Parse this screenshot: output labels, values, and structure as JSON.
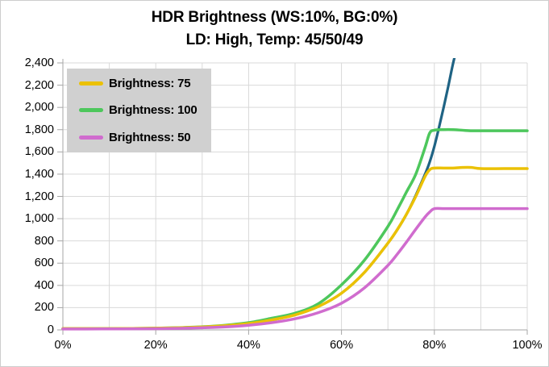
{
  "title": {
    "line1": "HDR Brightness (WS:10%, BG:0%)",
    "line2": "LD: High, Temp: 45/50/49"
  },
  "legend": {
    "position": "top-left",
    "items": [
      {
        "label": "Brightness: 75",
        "color": "#EBC104"
      },
      {
        "label": "Brightness: 100",
        "color": "#4DC75C"
      },
      {
        "label": "Brightness: 50",
        "color": "#D06CCE"
      }
    ]
  },
  "colors": {
    "background": "#FFFFFF",
    "border": "#CDCDCD",
    "gridline": "#D9D9D9",
    "axis": "#A6A6A6",
    "text": "#000000",
    "legend_bg": "#D0D0D0"
  },
  "chart_data": {
    "type": "line",
    "title": "HDR Brightness (WS:10%, BG:0%)",
    "subtitle": "LD: High, Temp: 45/50/49",
    "xlabel": "",
    "ylabel": "",
    "grid": true,
    "legend_position": "top-left",
    "xlim_pct": [
      0,
      100
    ],
    "ylim": [
      0,
      2400
    ],
    "y_tick_step": 200,
    "y_tick_labels": [
      "0",
      "200",
      "400",
      "600",
      "800",
      "1,000",
      "1,200",
      "1,400",
      "1,600",
      "1,800",
      "2,000",
      "2,200",
      "2,400"
    ],
    "x_tick_pct": [
      0,
      20,
      40,
      60,
      80,
      100
    ],
    "x_tick_labels": [
      "0%",
      "20%",
      "40%",
      "60%",
      "80%",
      "100%"
    ],
    "x_grid_step_pct": 10,
    "series": [
      {
        "name": "",
        "in_legend": false,
        "color": "#1F6384",
        "stroke_width": 3.2,
        "x_pct": [
          0,
          5,
          10,
          15,
          20,
          25,
          30,
          35,
          40,
          45,
          50,
          55,
          60,
          65,
          70,
          72,
          74,
          76,
          78,
          79,
          80,
          81,
          82,
          83,
          84,
          85
        ],
        "values": [
          12,
          12,
          12,
          13,
          15,
          19,
          26,
          38,
          57,
          90,
          135,
          210,
          330,
          520,
          780,
          900,
          1040,
          1210,
          1400,
          1510,
          1650,
          1820,
          2000,
          2190,
          2390,
          2560
        ]
      },
      {
        "name": "Brightness: 100",
        "in_legend": true,
        "color": "#4DC75C",
        "stroke_width": 3.5,
        "x_pct": [
          0,
          5,
          10,
          15,
          20,
          25,
          30,
          35,
          40,
          45,
          50,
          55,
          60,
          65,
          70,
          72,
          74,
          76,
          78,
          79,
          80,
          82,
          84,
          86,
          88,
          90,
          95,
          100
        ],
        "values": [
          10,
          10,
          11,
          13,
          15,
          20,
          28,
          42,
          65,
          105,
          150,
          235,
          405,
          630,
          930,
          1080,
          1240,
          1400,
          1640,
          1770,
          1795,
          1800,
          1800,
          1795,
          1790,
          1790,
          1790,
          1790
        ]
      },
      {
        "name": "Brightness: 75",
        "in_legend": true,
        "color": "#EBC104",
        "stroke_width": 3.5,
        "x_pct": [
          0,
          5,
          10,
          15,
          20,
          25,
          30,
          35,
          40,
          45,
          50,
          55,
          60,
          65,
          70,
          72,
          74,
          76,
          78,
          79,
          80,
          82,
          84,
          86,
          88,
          90,
          95,
          100
        ],
        "values": [
          12,
          12,
          12,
          13,
          15,
          19,
          26,
          38,
          57,
          90,
          135,
          210,
          330,
          520,
          780,
          900,
          1040,
          1200,
          1380,
          1440,
          1455,
          1455,
          1455,
          1460,
          1460,
          1450,
          1450,
          1450
        ]
      },
      {
        "name": "Brightness: 50",
        "in_legend": true,
        "color": "#D06CCE",
        "stroke_width": 3.5,
        "x_pct": [
          0,
          5,
          10,
          15,
          20,
          25,
          30,
          35,
          40,
          45,
          50,
          55,
          60,
          65,
          70,
          72,
          74,
          76,
          78,
          79,
          80,
          82,
          84,
          86,
          88,
          90,
          95,
          100
        ],
        "values": [
          8,
          8,
          9,
          10,
          11,
          14,
          19,
          27,
          42,
          65,
          100,
          155,
          240,
          380,
          580,
          680,
          790,
          905,
          1015,
          1060,
          1090,
          1090,
          1090,
          1090,
          1090,
          1090,
          1090,
          1090
        ]
      }
    ]
  }
}
